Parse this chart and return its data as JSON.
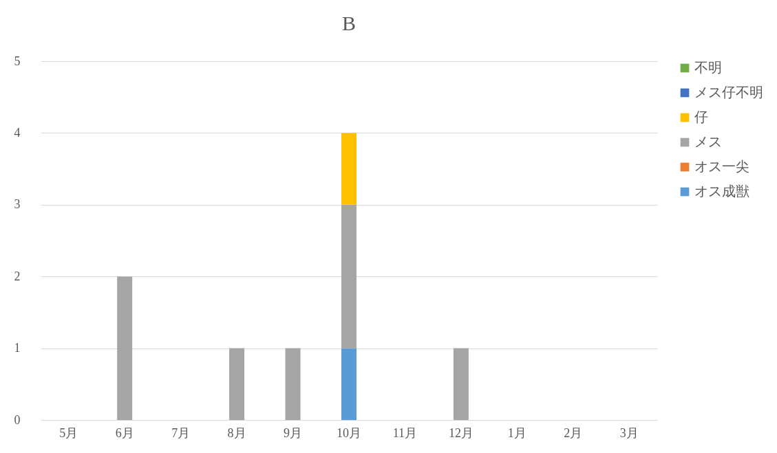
{
  "chart_data": {
    "type": "bar",
    "title": "B",
    "stacked": true,
    "categories": [
      "5月",
      "6月",
      "7月",
      "8月",
      "9月",
      "10月",
      "11月",
      "12月",
      "1月",
      "2月",
      "3月"
    ],
    "series": [
      {
        "name": "オス成獣",
        "color": "#5b9bd5",
        "values": [
          0,
          0,
          0,
          0,
          0,
          1,
          0,
          0,
          0,
          0,
          0
        ]
      },
      {
        "name": "オス一尖",
        "color": "#ed7d31",
        "values": [
          0,
          0,
          0,
          0,
          0,
          0,
          0,
          0,
          0,
          0,
          0
        ]
      },
      {
        "name": "メス",
        "color": "#a5a5a5",
        "values": [
          0,
          2,
          0,
          1,
          1,
          2,
          0,
          1,
          0,
          0,
          0
        ]
      },
      {
        "name": "仔",
        "color": "#ffc000",
        "values": [
          0,
          0,
          0,
          0,
          0,
          1,
          0,
          0,
          0,
          0,
          0
        ]
      },
      {
        "name": "メス仔不明",
        "color": "#4472c4",
        "values": [
          0,
          0,
          0,
          0,
          0,
          0,
          0,
          0,
          0,
          0,
          0
        ]
      },
      {
        "name": "不明",
        "color": "#70ad47",
        "values": [
          0,
          0,
          0,
          0,
          0,
          0,
          0,
          0,
          0,
          0,
          0
        ]
      }
    ],
    "ylim": [
      0,
      5
    ],
    "yticks": [
      0,
      1,
      2,
      3,
      4,
      5
    ],
    "grid": "y",
    "legend": "right"
  }
}
